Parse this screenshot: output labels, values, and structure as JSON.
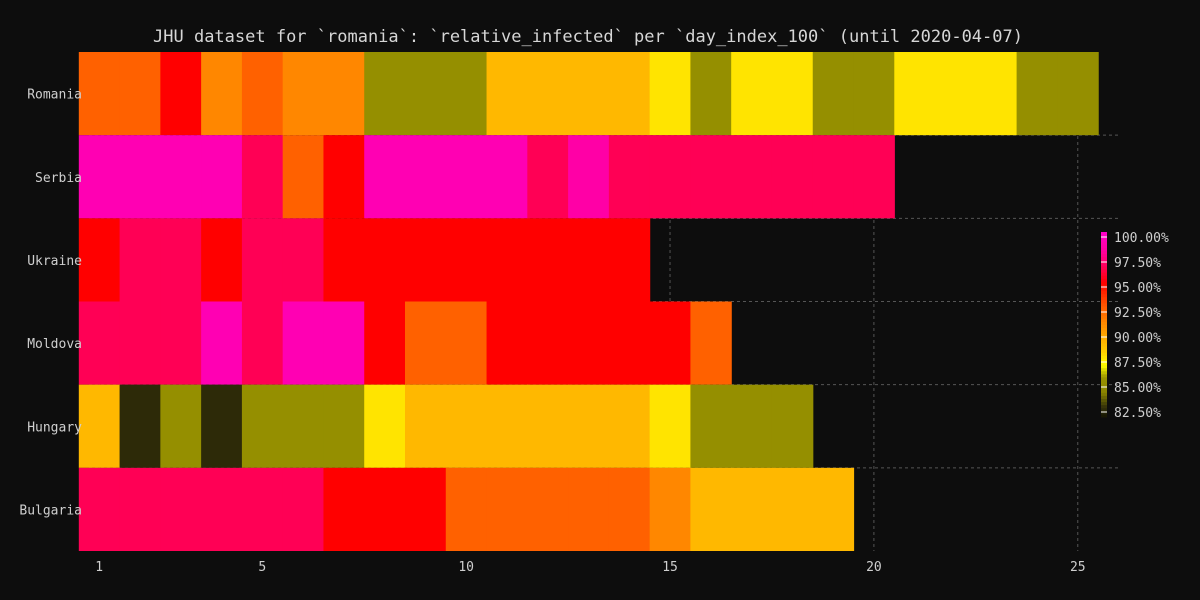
{
  "chart_data": {
    "type": "heatmap",
    "title": "JHU dataset for `romania`: `relative_infected` per `day_index_100` (until 2020-04-07)",
    "rows": [
      "Romania",
      "Serbia",
      "Ukraine",
      "Moldova",
      "Hungary",
      "Bulgaria"
    ],
    "x_start": 1,
    "xlim": [
      0.75,
      25.3
    ],
    "x_ticks": [
      1,
      5,
      10,
      15,
      20,
      25
    ],
    "x_tick_labels": [
      "1",
      "5",
      "10",
      "15",
      "20",
      "25"
    ],
    "values": [
      [
        92.8,
        92.8,
        95.5,
        91.5,
        92.8,
        91.5,
        91.5,
        85.5,
        85.5,
        85.5,
        89.5,
        89.5,
        89.5,
        89.5,
        88.0,
        85.5,
        88.0,
        88.0,
        85.5,
        85.5,
        88.0,
        88.0,
        88.0,
        85.5,
        85.5
      ],
      [
        99.5,
        99.5,
        99.5,
        99.5,
        97.0,
        92.8,
        95.5,
        99.5,
        99.5,
        99.5,
        99.5,
        97.0,
        99.0,
        97.0,
        97.0,
        97.0,
        97.0,
        97.0,
        97.0,
        97.0
      ],
      [
        95.5,
        97.0,
        97.0,
        95.5,
        97.0,
        97.0,
        95.5,
        95.5,
        95.5,
        95.5,
        95.5,
        95.5,
        95.5,
        95.5
      ],
      [
        97.0,
        97.0,
        97.0,
        99.5,
        97.0,
        99.5,
        99.5,
        95.5,
        92.8,
        92.8,
        95.5,
        95.5,
        95.5,
        95.5,
        95.5,
        92.8
      ],
      [
        89.5,
        82.8,
        85.5,
        82.8,
        85.5,
        85.5,
        85.5,
        88.0,
        89.5,
        89.5,
        89.5,
        89.5,
        89.5,
        89.5,
        88.0,
        85.5,
        85.5,
        85.5
      ],
      [
        97.0,
        97.0,
        97.0,
        97.0,
        97.0,
        97.0,
        95.5,
        95.5,
        95.5,
        92.8,
        92.8,
        92.8,
        92.8,
        92.8,
        91.5,
        89.5,
        89.5,
        89.5,
        89.5
      ]
    ],
    "colorbar": {
      "ticks": [
        100.0,
        97.5,
        95.0,
        92.5,
        90.0,
        87.5,
        85.0,
        82.5
      ],
      "tick_labels": [
        "100.00%",
        "97.50%",
        "95.00%",
        "92.50%",
        "90.00%",
        "87.50%",
        "85.00%",
        "82.50%"
      ],
      "range": [
        82.0,
        100.5
      ]
    },
    "colors": {
      "background": "#0d0d0d",
      "grid": "#555555",
      "scale": [
        {
          "at": 82.0,
          "color": "#141400"
        },
        {
          "at": 83.0,
          "color": "#33300a"
        },
        {
          "at": 84.5,
          "color": "#8a8400"
        },
        {
          "at": 86.0,
          "color": "#9a9400"
        },
        {
          "at": 87.2,
          "color": "#ffff00"
        },
        {
          "at": 88.8,
          "color": "#ffc800"
        },
        {
          "at": 90.5,
          "color": "#ffa000"
        },
        {
          "at": 91.8,
          "color": "#ff8000"
        },
        {
          "at": 93.2,
          "color": "#ff5500"
        },
        {
          "at": 95.5,
          "color": "#ff0000"
        },
        {
          "at": 97.0,
          "color": "#ff0055"
        },
        {
          "at": 98.5,
          "color": "#ff0099"
        },
        {
          "at": 100.5,
          "color": "#ff00cc"
        }
      ]
    },
    "grid": true
  }
}
